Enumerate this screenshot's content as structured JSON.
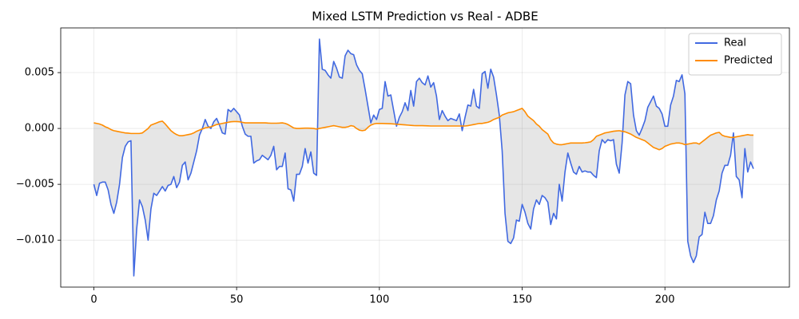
{
  "chart_data": {
    "type": "line",
    "title": "Mixed LSTM Prediction vs Real - ADBE",
    "x": [
      0,
      1,
      2,
      3,
      4,
      5,
      6,
      7,
      8,
      9,
      10,
      11,
      12,
      13,
      14,
      15,
      16,
      17,
      18,
      19,
      20,
      21,
      22,
      23,
      24,
      25,
      26,
      27,
      28,
      29,
      30,
      31,
      32,
      33,
      34,
      35,
      36,
      37,
      38,
      39,
      40,
      41,
      42,
      43,
      44,
      45,
      46,
      47,
      48,
      49,
      50,
      51,
      52,
      53,
      54,
      55,
      56,
      57,
      58,
      59,
      60,
      61,
      62,
      63,
      64,
      65,
      66,
      67,
      68,
      69,
      70,
      71,
      72,
      73,
      74,
      75,
      76,
      77,
      78,
      79,
      80,
      81,
      82,
      83,
      84,
      85,
      86,
      87,
      88,
      89,
      90,
      91,
      92,
      93,
      94,
      95,
      96,
      97,
      98,
      99,
      100,
      101,
      102,
      103,
      104,
      105,
      106,
      107,
      108,
      109,
      110,
      111,
      112,
      113,
      114,
      115,
      116,
      117,
      118,
      119,
      120,
      121,
      122,
      123,
      124,
      125,
      126,
      127,
      128,
      129,
      130,
      131,
      132,
      133,
      134,
      135,
      136,
      137,
      138,
      139,
      140,
      141,
      142,
      143,
      144,
      145,
      146,
      147,
      148,
      149,
      150,
      151,
      152,
      153,
      154,
      155,
      156,
      157,
      158,
      159,
      160,
      161,
      162,
      163,
      164,
      165,
      166,
      167,
      168,
      169,
      170,
      171,
      172,
      173,
      174,
      175,
      176,
      177,
      178,
      179,
      180,
      181,
      182,
      183,
      184,
      185,
      186,
      187,
      188,
      189,
      190,
      191,
      192,
      193,
      194,
      195,
      196,
      197,
      198,
      199,
      200,
      201,
      202,
      203,
      204,
      205,
      206,
      207,
      208,
      209,
      210,
      211,
      212,
      213,
      214,
      215,
      216,
      217,
      218,
      219,
      220,
      221,
      222,
      223,
      224,
      225,
      226,
      227,
      228,
      229,
      230,
      231
    ],
    "series": [
      {
        "name": "Real",
        "color": "#4169e1",
        "values": [
          -0.005,
          -0.006,
          -0.0049,
          -0.0048,
          -0.0048,
          -0.0055,
          -0.0068,
          -0.0076,
          -0.0066,
          -0.005,
          -0.0026,
          -0.0016,
          -0.0012,
          -0.0011,
          -0.0132,
          -0.009,
          -0.0064,
          -0.007,
          -0.0082,
          -0.01,
          -0.0072,
          -0.0058,
          -0.006,
          -0.0056,
          -0.0052,
          -0.0056,
          -0.0051,
          -0.005,
          -0.0043,
          -0.0053,
          -0.0048,
          -0.0033,
          -0.003,
          -0.0046,
          -0.004,
          -0.003,
          -0.002,
          -0.0006,
          0.0,
          0.0008,
          0.0002,
          0.0,
          0.0006,
          0.0009,
          0.0003,
          -0.0004,
          -0.0005,
          0.0017,
          0.0015,
          0.0018,
          0.0015,
          0.0012,
          0.0002,
          -0.0005,
          -0.0007,
          -0.0007,
          -0.0031,
          -0.0029,
          -0.0028,
          -0.0024,
          -0.0026,
          -0.0028,
          -0.0024,
          -0.0016,
          -0.0037,
          -0.0034,
          -0.0034,
          -0.0022,
          -0.0054,
          -0.0055,
          -0.0065,
          -0.0041,
          -0.0041,
          -0.0034,
          -0.0018,
          -0.0031,
          -0.0021,
          -0.004,
          -0.0042,
          0.008,
          0.0053,
          0.0052,
          0.0048,
          0.0045,
          0.006,
          0.0054,
          0.0046,
          0.0045,
          0.0065,
          0.007,
          0.0067,
          0.0066,
          0.0057,
          0.0052,
          0.0049,
          0.0035,
          0.002,
          0.0005,
          0.0012,
          0.0008,
          0.0017,
          0.0018,
          0.0042,
          0.0029,
          0.003,
          0.0016,
          0.0002,
          0.001,
          0.0015,
          0.0023,
          0.0016,
          0.0034,
          0.002,
          0.0042,
          0.0045,
          0.0041,
          0.0039,
          0.0047,
          0.0037,
          0.0041,
          0.0029,
          0.0008,
          0.0016,
          0.0011,
          0.0007,
          0.0009,
          0.0008,
          0.0007,
          0.0013,
          -0.0002,
          0.001,
          0.0021,
          0.002,
          0.0035,
          0.002,
          0.0018,
          0.0049,
          0.0051,
          0.0036,
          0.0053,
          0.0046,
          0.003,
          0.0012,
          -0.002,
          -0.0076,
          -0.0101,
          -0.0103,
          -0.0098,
          -0.0082,
          -0.0083,
          -0.0068,
          -0.0075,
          -0.0085,
          -0.009,
          -0.0072,
          -0.0064,
          -0.0068,
          -0.006,
          -0.0062,
          -0.0066,
          -0.0086,
          -0.0076,
          -0.0081,
          -0.005,
          -0.0065,
          -0.0039,
          -0.0022,
          -0.0031,
          -0.0039,
          -0.0041,
          -0.0034,
          -0.0039,
          -0.0038,
          -0.0039,
          -0.0039,
          -0.0042,
          -0.0044,
          -0.002,
          -0.001,
          -0.0013,
          -0.001,
          -0.0011,
          -0.001,
          -0.0032,
          -0.004,
          -0.0013,
          0.003,
          0.0042,
          0.004,
          0.0012,
          -0.0002,
          -0.0006,
          0.0,
          0.0007,
          0.0019,
          0.0024,
          0.0029,
          0.002,
          0.0018,
          0.0013,
          0.0002,
          0.0002,
          0.0021,
          0.0029,
          0.0043,
          0.0042,
          0.0048,
          0.0031,
          -0.0101,
          -0.0114,
          -0.012,
          -0.0114,
          -0.0097,
          -0.0095,
          -0.0075,
          -0.0085,
          -0.0085,
          -0.0078,
          -0.0064,
          -0.0056,
          -0.004,
          -0.0033,
          -0.0033,
          -0.0024,
          -0.0004,
          -0.0043,
          -0.0046,
          -0.0062,
          -0.0018,
          -0.0039,
          -0.003,
          -0.0036
        ]
      },
      {
        "name": "Predicted",
        "color": "#ff8c00",
        "values": [
          0.0005,
          0.00045,
          0.0004,
          0.0003,
          0.00015,
          5e-05,
          -0.0001,
          -0.0002,
          -0.00025,
          -0.0003,
          -0.00035,
          -0.0004,
          -0.00042,
          -0.00045,
          -0.00045,
          -0.00045,
          -0.00045,
          -0.0004,
          -0.0002,
          0.0,
          0.0003,
          0.0004,
          0.0005,
          0.0006,
          0.00065,
          0.0004,
          0.0001,
          -0.0002,
          -0.0004,
          -0.00055,
          -0.00065,
          -0.00065,
          -0.0006,
          -0.00055,
          -0.0005,
          -0.0004,
          -0.00025,
          -0.00015,
          -5e-05,
          5e-05,
          0.0001,
          0.00015,
          0.00025,
          0.00035,
          0.0004,
          0.00045,
          0.0005,
          0.00055,
          0.0006,
          0.00062,
          0.00062,
          0.0006,
          0.00055,
          0.0005,
          0.0005,
          0.0005,
          0.0005,
          0.0005,
          0.0005,
          0.0005,
          0.0005,
          0.00048,
          0.00047,
          0.00047,
          0.00047,
          0.00048,
          0.0005,
          0.00045,
          0.00035,
          0.0002,
          5e-05,
          0.0,
          0.0,
          2e-05,
          3e-05,
          3e-05,
          2e-05,
          0.0,
          -5e-05,
          0.0,
          5e-05,
          0.0001,
          0.00015,
          0.0002,
          0.00025,
          0.0002,
          0.00015,
          0.0001,
          0.0001,
          0.00015,
          0.00025,
          0.0002,
          0.0,
          -0.00015,
          -0.0002,
          -0.00015,
          0.0001,
          0.0003,
          0.0004,
          0.00045,
          0.00045,
          0.00045,
          0.00044,
          0.00043,
          0.00042,
          0.0004,
          0.00038,
          0.00036,
          0.00034,
          0.00032,
          0.0003,
          0.00028,
          0.00026,
          0.00025,
          0.00025,
          0.00025,
          0.00024,
          0.00023,
          0.00022,
          0.00022,
          0.00022,
          0.00022,
          0.00022,
          0.00022,
          0.00022,
          0.00022,
          0.00022,
          0.00022,
          0.00022,
          0.00022,
          0.00022,
          0.00025,
          0.0003,
          0.00035,
          0.0004,
          0.00045,
          0.00045,
          0.0005,
          0.00055,
          0.00065,
          0.0008,
          0.0009,
          0.001,
          0.0012,
          0.0013,
          0.0014,
          0.00145,
          0.0015,
          0.0016,
          0.0017,
          0.0018,
          0.0015,
          0.0011,
          0.0009,
          0.0007,
          0.0004,
          0.0002,
          -0.0001,
          -0.0003,
          -0.0005,
          -0.001,
          -0.0013,
          -0.0014,
          -0.00145,
          -0.00145,
          -0.0014,
          -0.00135,
          -0.0013,
          -0.0013,
          -0.0013,
          -0.0013,
          -0.0013,
          -0.00128,
          -0.00125,
          -0.0012,
          -0.001,
          -0.0007,
          -0.0006,
          -0.0005,
          -0.0004,
          -0.00035,
          -0.0003,
          -0.00025,
          -0.00022,
          -0.0002,
          -0.00025,
          -0.0003,
          -0.0004,
          -0.0005,
          -0.00065,
          -0.0008,
          -0.0009,
          -0.001,
          -0.0011,
          -0.0013,
          -0.0015,
          -0.0017,
          -0.0018,
          -0.0019,
          -0.0018,
          -0.0016,
          -0.0015,
          -0.0014,
          -0.00135,
          -0.0013,
          -0.0013,
          -0.00135,
          -0.00145,
          -0.0014,
          -0.00135,
          -0.0013,
          -0.0013,
          -0.0014,
          -0.0012,
          -0.001,
          -0.0008,
          -0.0006,
          -0.0005,
          -0.0004,
          -0.00035,
          -0.0006,
          -0.0007,
          -0.00075,
          -0.0008,
          -0.0008,
          -0.00075,
          -0.0007,
          -0.00065,
          -0.0006,
          -0.00055,
          -0.0006,
          -0.0006
        ]
      }
    ],
    "fill_between": true,
    "xlim": [
      -11.6,
      243.6
    ],
    "xticks": [
      0,
      50,
      100,
      150,
      200
    ],
    "ylim": [
      -0.0142,
      0.009
    ],
    "yticks": [
      {
        "value": -0.01,
        "label": "−0.010"
      },
      {
        "value": -0.005,
        "label": "−0.005"
      },
      {
        "value": 0,
        "label": "0.000"
      },
      {
        "value": 0.005,
        "label": "0.005"
      }
    ],
    "grid": true,
    "legend": "upper right"
  }
}
